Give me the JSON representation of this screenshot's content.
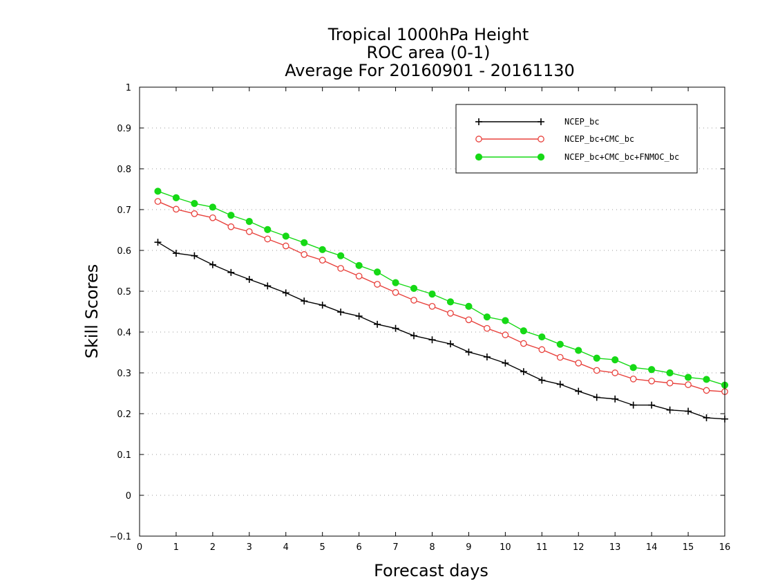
{
  "chart_data": {
    "type": "line",
    "title": [
      "Tropical 1000hPa Height",
      "ROC area (0-1)",
      "Average For 20160901 - 20161130"
    ],
    "xlabel": "Forecast days",
    "ylabel": "Skill Scores",
    "xlim": [
      0,
      16
    ],
    "ylim": [
      -0.1,
      1
    ],
    "xticks": [
      "0",
      "1",
      "2",
      "3",
      "4",
      "5",
      "6",
      "7",
      "8",
      "9",
      "10",
      "11",
      "12",
      "13",
      "14",
      "15",
      "16"
    ],
    "yticks": [
      "−0.1",
      "0",
      "0.1",
      "0.2",
      "0.3",
      "0.4",
      "0.5",
      "0.6",
      "0.7",
      "0.8",
      "0.9",
      "1"
    ],
    "grid": true,
    "legend_position": "top-right",
    "x": [
      0.5,
      1,
      1.5,
      2,
      2.5,
      3,
      3.5,
      4,
      4.5,
      5,
      5.5,
      6,
      6.5,
      7,
      7.5,
      8,
      8.5,
      9,
      9.5,
      10,
      10.5,
      11,
      11.5,
      12,
      12.5,
      13,
      13.5,
      14,
      14.5,
      15,
      15.5,
      16
    ],
    "series": [
      {
        "name": "NCEP_bc",
        "color": "#000000",
        "marker": "plus",
        "values": [
          0.62,
          0.593,
          0.587,
          0.565,
          0.546,
          0.529,
          0.513,
          0.496,
          0.476,
          0.466,
          0.449,
          0.439,
          0.419,
          0.409,
          0.391,
          0.381,
          0.371,
          0.351,
          0.339,
          0.324,
          0.303,
          0.282,
          0.272,
          0.255,
          0.24,
          0.236,
          0.221,
          0.221,
          0.209,
          0.206,
          0.19,
          0.187
        ]
      },
      {
        "name": "NCEP_bc+CMC_bc",
        "color": "#e8413c",
        "marker": "open-circle",
        "values": [
          0.72,
          0.701,
          0.69,
          0.68,
          0.658,
          0.646,
          0.628,
          0.611,
          0.59,
          0.576,
          0.556,
          0.537,
          0.517,
          0.497,
          0.478,
          0.463,
          0.446,
          0.43,
          0.409,
          0.393,
          0.372,
          0.357,
          0.338,
          0.324,
          0.306,
          0.3,
          0.285,
          0.28,
          0.275,
          0.271,
          0.257,
          0.254
        ]
      },
      {
        "name": "NCEP_bc+CMC_bc+FNMOC_bc",
        "color": "#16d916",
        "marker": "filled-circle",
        "values": [
          0.745,
          0.729,
          0.715,
          0.706,
          0.686,
          0.671,
          0.651,
          0.635,
          0.619,
          0.602,
          0.587,
          0.563,
          0.547,
          0.521,
          0.507,
          0.493,
          0.474,
          0.463,
          0.437,
          0.428,
          0.403,
          0.388,
          0.37,
          0.355,
          0.336,
          0.332,
          0.313,
          0.308,
          0.3,
          0.289,
          0.284,
          0.27
        ]
      }
    ]
  }
}
